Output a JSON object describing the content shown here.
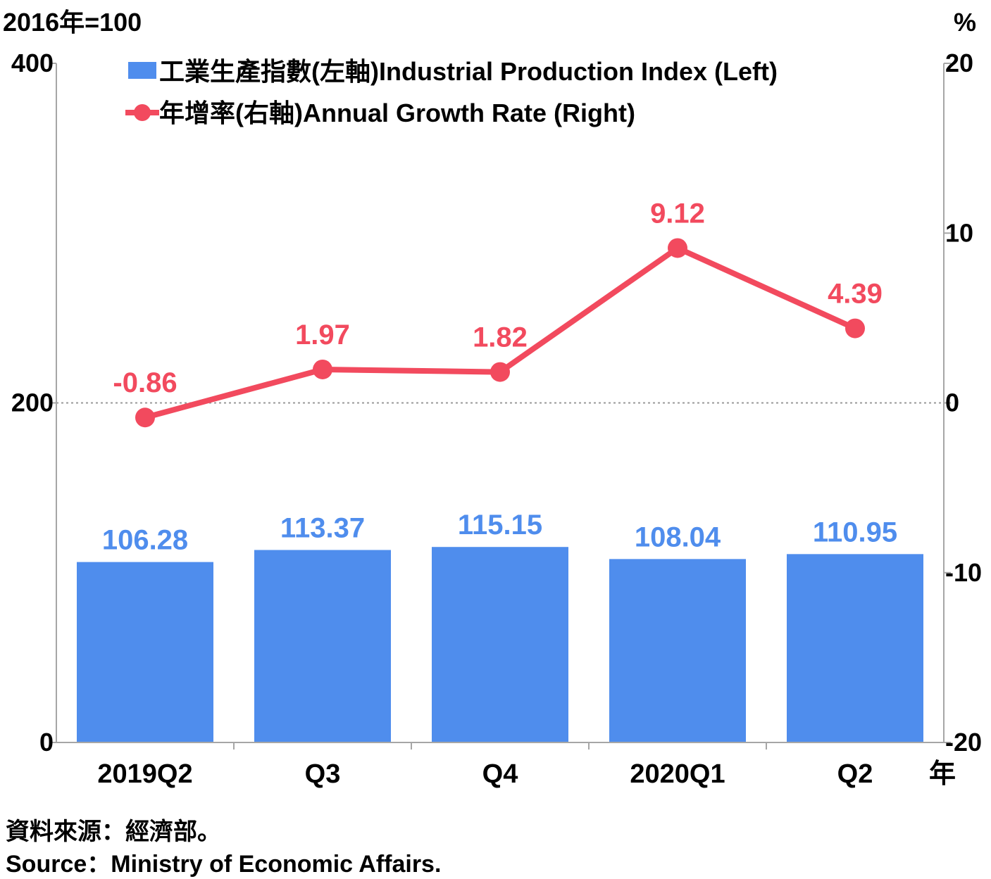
{
  "chart_data": {
    "type": "bar+line",
    "categories": [
      "2019Q2",
      "Q3",
      "Q4",
      "2020Q1",
      "Q2"
    ],
    "x_unit_label": "年",
    "left_axis": {
      "unit_label": "2016年=100",
      "ylim": [
        0,
        400
      ],
      "ticks": [
        "0",
        "200",
        "400"
      ]
    },
    "right_axis": {
      "unit_label": "%",
      "ylim": [
        -20,
        20
      ],
      "ticks": [
        "-20",
        "-10",
        "0",
        "10",
        "20"
      ]
    },
    "zero_line": "dotted at right-axis 0",
    "series": [
      {
        "name": "工業生產指數(左軸)Industrial Production Index (Left)",
        "type": "bar",
        "axis": "left",
        "color": "#4f8ded",
        "values": [
          106.28,
          113.37,
          115.15,
          108.04,
          110.95
        ],
        "labels": [
          "106.28",
          "113.37",
          "115.15",
          "108.04",
          "110.95"
        ]
      },
      {
        "name": "年增率(右軸)Annual Growth Rate (Right)",
        "type": "line",
        "axis": "right",
        "color": "#f24a5e",
        "values": [
          -0.86,
          1.97,
          1.82,
          9.12,
          4.39
        ],
        "labels": [
          "-0.86",
          "1.97",
          "1.82",
          "9.12",
          "4.39"
        ]
      }
    ],
    "legend_position": "top-left"
  },
  "source": {
    "zh": "資料來源：經濟部。",
    "en": "Source：Ministry of Economic Affairs."
  }
}
